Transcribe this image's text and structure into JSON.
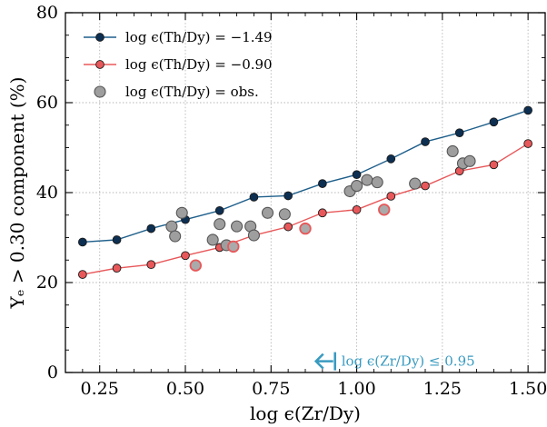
{
  "chart_data": {
    "type": "line",
    "xlabel": "log ϵ(Zr/Dy)",
    "ylabel": "Yₑ > 0.30 component (%)",
    "xlim": [
      0.15,
      1.55
    ],
    "ylim": [
      0,
      80
    ],
    "x_ticks": [
      0.25,
      0.5,
      0.75,
      1.0,
      1.25,
      1.5
    ],
    "x_tick_labels": [
      "0.25",
      "0.50",
      "0.75",
      "1.00",
      "1.25",
      "1.50"
    ],
    "y_ticks": [
      0,
      20,
      40,
      60,
      80
    ],
    "y_tick_labels": [
      "0",
      "20",
      "40",
      "60",
      "80"
    ],
    "grid": true,
    "legend_position": "top-left",
    "series": [
      {
        "name": "log ϵ(Th/Dy) = −1.49",
        "kind": "line",
        "color": "#1f5f8b",
        "marker_fill": "#0d2f52",
        "x": [
          0.2,
          0.3,
          0.4,
          0.5,
          0.6,
          0.7,
          0.8,
          0.9,
          1.0,
          1.1,
          1.2,
          1.3,
          1.4,
          1.5
        ],
        "y": [
          29.0,
          29.5,
          32.0,
          34.0,
          36.0,
          39.0,
          39.3,
          42.0,
          44.0,
          47.5,
          51.3,
          53.3,
          55.7,
          58.3
        ]
      },
      {
        "name": "log ϵ(Th/Dy) = −0.90",
        "kind": "line",
        "color": "#e8585a",
        "marker_fill": "#e8585a",
        "x": [
          0.2,
          0.3,
          0.4,
          0.5,
          0.6,
          0.7,
          0.8,
          0.9,
          1.0,
          1.1,
          1.2,
          1.3,
          1.4,
          1.5
        ],
        "y": [
          21.8,
          23.2,
          24.0,
          26.0,
          27.8,
          30.5,
          32.4,
          35.5,
          36.2,
          39.2,
          41.5,
          44.8,
          46.2,
          50.9
        ]
      },
      {
        "name": "log ϵ(Th/Dy) = obs.",
        "kind": "scatter",
        "color": "#9e9e9e",
        "edge_color": "#555555",
        "x": [
          0.46,
          0.47,
          0.49,
          0.58,
          0.6,
          0.62,
          0.65,
          0.69,
          0.7,
          0.74,
          0.79,
          0.98,
          1.0,
          1.03,
          1.06,
          1.17,
          1.28,
          1.31,
          1.33
        ],
        "y": [
          32.5,
          30.3,
          35.5,
          29.5,
          33.0,
          28.3,
          32.5,
          32.5,
          30.5,
          35.5,
          35.2,
          40.3,
          41.5,
          42.8,
          42.3,
          42.0,
          49.2,
          46.5,
          47.0
        ]
      },
      {
        "name": "",
        "kind": "scatter-highlight",
        "color": "#aaaaaa",
        "edge_color": "#e8585a",
        "x": [
          0.53,
          0.64,
          0.85,
          1.08
        ],
        "y": [
          23.8,
          28.0,
          32.0,
          36.2
        ]
      }
    ],
    "annotation": {
      "text": "log ϵ(Zr/Dy) ≤ 0.95",
      "color": "#3a9bc0",
      "arrow": "left",
      "x": 0.95,
      "y": 2.5
    }
  }
}
